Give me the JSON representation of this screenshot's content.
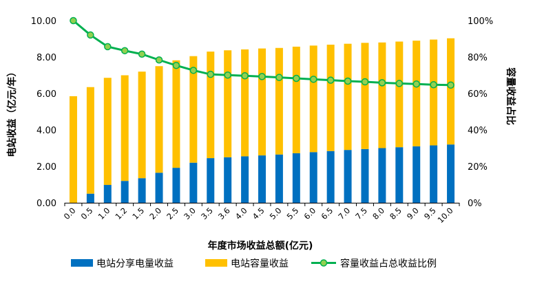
{
  "chart_data": {
    "type": "bar",
    "stacked": true,
    "xlabel": "年度市场收益总额(亿元)",
    "ylabel_left": "电站收益（亿元/年）",
    "ylabel_right": "容量收益占比",
    "ylim_left": [
      0,
      10
    ],
    "yticks_left": [
      "0.00",
      "2.00",
      "4.00",
      "6.00",
      "8.00",
      "10.00"
    ],
    "ylim_right": [
      0,
      100
    ],
    "yticks_right": [
      "0%",
      "20%",
      "40%",
      "60%",
      "80%",
      "100%"
    ],
    "grid": false,
    "legend_position": "bottom",
    "categories": [
      "0.0",
      "0.5",
      "1.0",
      "1.2",
      "1.5",
      "2.0",
      "2.5",
      "3.0",
      "3.5",
      "3.6",
      "4.0",
      "4.5",
      "5.0",
      "5.5",
      "6.0",
      "6.5",
      "7.0",
      "7.5",
      "8.0",
      "8.5",
      "9.0",
      "9.5",
      "10.0"
    ],
    "series": [
      {
        "name": "电站分享电量收益",
        "kind": "bar",
        "axis": "left",
        "color": "#0070C0",
        "values": [
          0.0,
          0.5,
          0.98,
          1.2,
          1.35,
          1.65,
          1.92,
          2.2,
          2.45,
          2.5,
          2.55,
          2.6,
          2.65,
          2.72,
          2.78,
          2.84,
          2.9,
          2.95,
          3.0,
          3.05,
          3.1,
          3.15,
          3.2
        ]
      },
      {
        "name": "电站容量收益",
        "kind": "bar",
        "axis": "left",
        "color": "#FFC000",
        "values": [
          5.85,
          5.85,
          5.88,
          5.8,
          5.85,
          5.85,
          5.9,
          5.85,
          5.85,
          5.87,
          5.87,
          5.87,
          5.85,
          5.85,
          5.85,
          5.84,
          5.83,
          5.83,
          5.8,
          5.8,
          5.8,
          5.81,
          5.83
        ]
      },
      {
        "name": "容量收益占总收益比例",
        "kind": "line",
        "axis": "right",
        "color": "#00B050",
        "marker_color": "#92D050",
        "values": [
          100,
          92.1,
          85.7,
          83.5,
          81.6,
          78.4,
          75.4,
          72.7,
          70.5,
          70.1,
          69.7,
          69.3,
          68.8,
          68.3,
          67.8,
          67.3,
          66.8,
          66.4,
          65.9,
          65.5,
          65.2,
          64.8,
          64.6
        ]
      }
    ]
  }
}
